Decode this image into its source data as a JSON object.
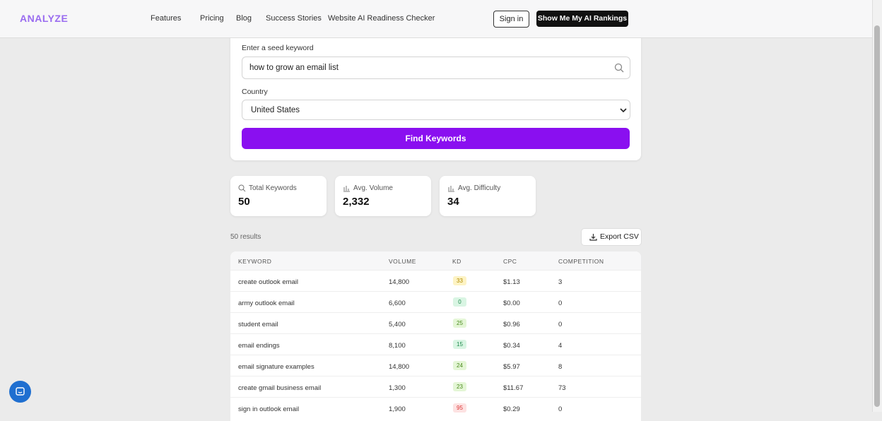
{
  "nav": {
    "logo": "ANALYZE",
    "links": [
      "Features",
      "Pricing",
      "Blog",
      "Success Stories",
      "Website AI Readiness Checker"
    ],
    "sign_in": "Sign in",
    "cta": "Show Me My AI Rankings"
  },
  "form": {
    "keyword_label": "Enter a seed keyword",
    "keyword_value": "how to grow an email list",
    "country_label": "Country",
    "country_value": "United States",
    "button": "Find Keywords"
  },
  "stats": [
    {
      "label": "Total Keywords",
      "value": "50"
    },
    {
      "label": "Avg. Volume",
      "value": "2,332"
    },
    {
      "label": "Avg. Difficulty",
      "value": "34"
    }
  ],
  "results": {
    "count": "50 results",
    "export": "Export CSV"
  },
  "table": {
    "columns": [
      "KEYWORD",
      "VOLUME",
      "KD",
      "CPC",
      "COMPETITION"
    ],
    "rows": [
      [
        "create outlook email",
        "14,800",
        "33",
        "$1.13",
        "3"
      ],
      [
        "army outlook email",
        "6,600",
        "0",
        "$0.00",
        "0"
      ],
      [
        "student email",
        "5,400",
        "25",
        "$0.96",
        "0"
      ],
      [
        "email endings",
        "8,100",
        "15",
        "$0.34",
        "4"
      ],
      [
        "email signature examples",
        "14,800",
        "24",
        "$5.97",
        "8"
      ],
      [
        "create gmail business email",
        "1,300",
        "23",
        "$11.67",
        "73"
      ],
      [
        "sign in outlook email",
        "1,900",
        "95",
        "$0.29",
        "0"
      ]
    ]
  }
}
